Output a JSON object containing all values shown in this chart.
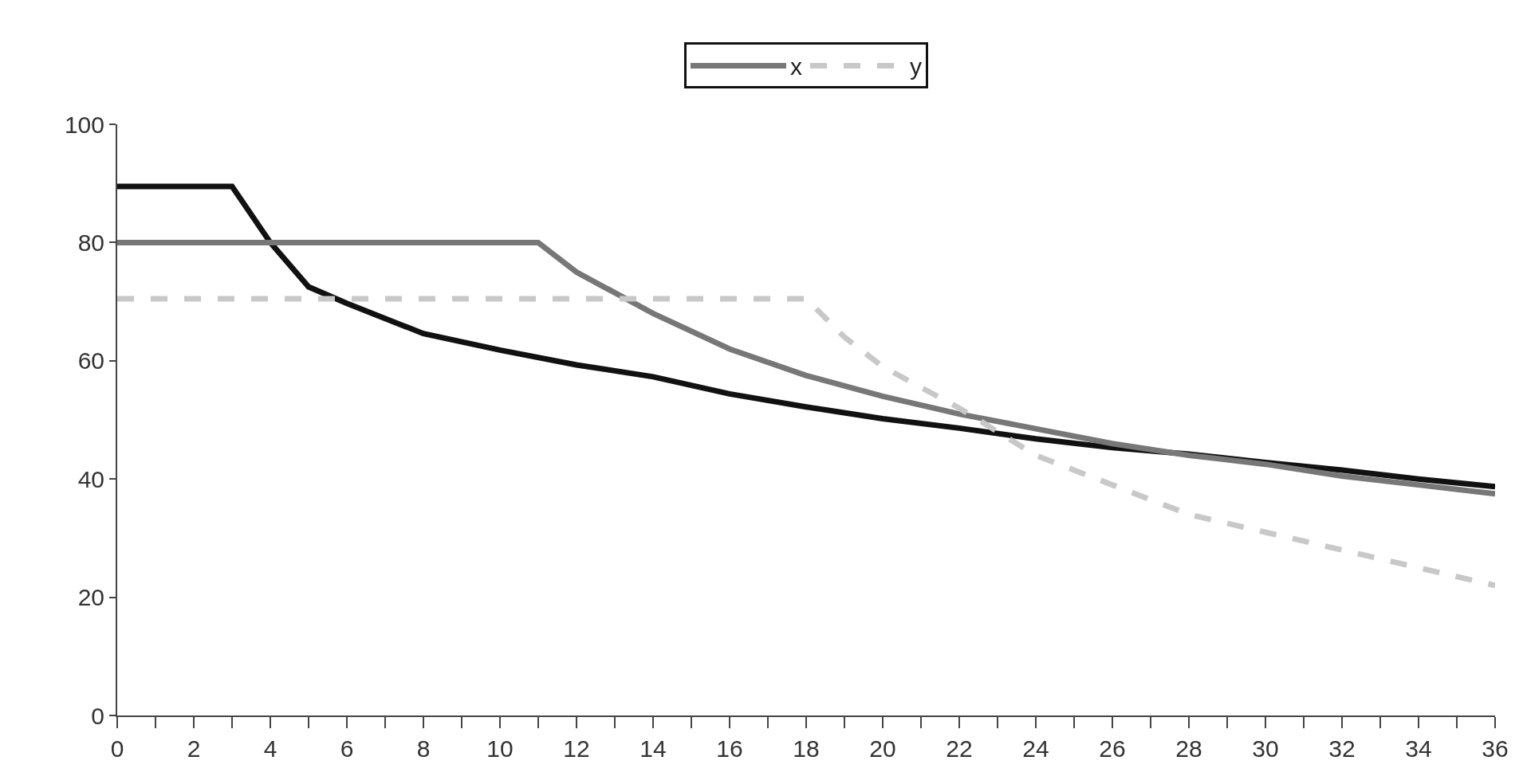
{
  "chart_data": {
    "type": "line",
    "xlim": [
      0,
      36
    ],
    "ylim": [
      0,
      100
    ],
    "xticks": [
      0,
      2,
      4,
      6,
      8,
      10,
      12,
      14,
      16,
      18,
      20,
      22,
      24,
      26,
      28,
      30,
      32,
      34,
      36
    ],
    "yticks": [
      0,
      20,
      40,
      60,
      80,
      100
    ],
    "grid": false,
    "legend": "top",
    "marker": "none",
    "series": [
      {
        "color": "#111111",
        "line_style": "solid",
        "x": [
          0,
          3,
          4,
          5,
          6,
          8,
          10,
          12,
          14,
          16,
          18,
          20,
          22,
          24,
          26,
          28,
          30,
          32,
          34,
          36
        ],
        "values": [
          89.5,
          89.5,
          80,
          72.5,
          69.7,
          64.6,
          61.8,
          59.3,
          57.3,
          54.4,
          52.2,
          50.2,
          48.6,
          46.8,
          45.3,
          44.2,
          42.8,
          41.5,
          40,
          38.7
        ]
      },
      {
        "name": "x",
        "color": "#777777",
        "line_style": "solid",
        "x": [
          0,
          11,
          12,
          14,
          16,
          18,
          20,
          22,
          24,
          26,
          28,
          30,
          32,
          34,
          36
        ],
        "values": [
          80,
          80,
          75,
          68,
          62,
          57.5,
          54,
          51,
          48.5,
          46,
          44,
          42.5,
          40.5,
          39,
          37.5
        ]
      },
      {
        "name": "y",
        "color": "#c8c8c8",
        "line_style": "dashed",
        "x": [
          0,
          18,
          19,
          20,
          22,
          24,
          26,
          28,
          30,
          32,
          34,
          36
        ],
        "values": [
          70.5,
          70.5,
          64,
          59,
          52,
          44,
          39,
          34,
          31,
          28,
          25,
          22
        ]
      }
    ]
  }
}
